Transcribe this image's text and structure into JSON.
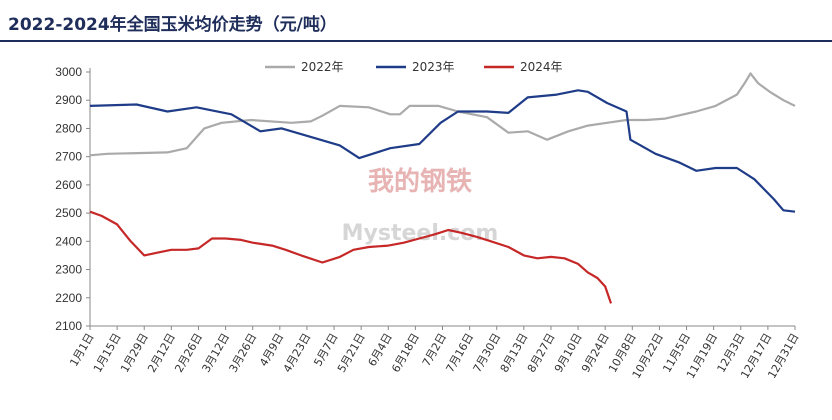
{
  "title": "2022-2024年全国玉米均价走势（元/吨）",
  "watermark": {
    "cn": "我的钢铁",
    "en": "Mysteel.com"
  },
  "chart_data": {
    "type": "line",
    "title": "2022-2024年全国玉米均价走势（元/吨）",
    "xlabel": "",
    "ylabel": "",
    "ylim": [
      2100,
      3000
    ],
    "yticks": [
      2100,
      2200,
      2300,
      2400,
      2500,
      2600,
      2700,
      2800,
      2900,
      3000
    ],
    "xticks": [
      "1月1日",
      "1月15日",
      "1月29日",
      "2月12日",
      "2月26日",
      "3月12日",
      "3月26日",
      "4月9日",
      "4月23日",
      "5月7日",
      "5月21日",
      "6月4日",
      "6月18日",
      "7月2日",
      "7月16日",
      "7月30日",
      "8月13日",
      "8月27日",
      "9月10日",
      "9月24日",
      "10月8日",
      "10月22日",
      "11月5日",
      "11月19日",
      "12月3日",
      "12月17日",
      "12月31日"
    ],
    "grid": false,
    "legend_position": "top",
    "series": [
      {
        "name": "2022年",
        "color": "#aaaaaa",
        "x": [
          "01-01",
          "01-10",
          "02-10",
          "02-20",
          "03-01",
          "03-10",
          "03-25",
          "04-15",
          "04-25",
          "05-01",
          "05-10",
          "05-25",
          "06-05",
          "06-10",
          "06-15",
          "06-30",
          "07-10",
          "07-25",
          "08-05",
          "08-15",
          "08-25",
          "09-05",
          "09-15",
          "09-25",
          "10-05",
          "10-15",
          "10-25",
          "11-10",
          "11-20",
          "12-01",
          "12-05",
          "12-08",
          "12-12",
          "12-18",
          "12-25",
          "12-31"
        ],
        "y": [
          2705,
          2710,
          2715,
          2730,
          2800,
          2820,
          2830,
          2820,
          2825,
          2845,
          2880,
          2875,
          2850,
          2850,
          2880,
          2880,
          2860,
          2840,
          2785,
          2790,
          2760,
          2790,
          2810,
          2820,
          2830,
          2830,
          2835,
          2860,
          2880,
          2920,
          2960,
          2995,
          2960,
          2930,
          2900,
          2880
        ]
      },
      {
        "name": "2023年",
        "color": "#1f3c88",
        "x": [
          "01-01",
          "01-25",
          "02-10",
          "02-25",
          "03-15",
          "03-30",
          "04-10",
          "04-25",
          "05-10",
          "05-20",
          "06-05",
          "06-20",
          "07-01",
          "07-10",
          "07-25",
          "08-05",
          "08-15",
          "08-30",
          "09-10",
          "09-15",
          "09-25",
          "10-05",
          "10-07",
          "10-20",
          "11-01",
          "11-10",
          "11-20",
          "12-01",
          "12-10",
          "12-20",
          "12-25",
          "12-31"
        ],
        "y": [
          2880,
          2885,
          2860,
          2875,
          2850,
          2790,
          2800,
          2770,
          2740,
          2695,
          2730,
          2745,
          2820,
          2860,
          2860,
          2855,
          2910,
          2920,
          2935,
          2930,
          2890,
          2860,
          2760,
          2710,
          2680,
          2650,
          2660,
          2660,
          2620,
          2550,
          2510,
          2505
        ]
      },
      {
        "name": "2024年",
        "color": "#c62828",
        "x": [
          "01-01",
          "01-07",
          "01-15",
          "01-22",
          "01-29",
          "02-05",
          "02-12",
          "02-20",
          "02-26",
          "03-05",
          "03-12",
          "03-20",
          "03-26",
          "04-05",
          "04-12",
          "04-20",
          "05-01",
          "05-10",
          "05-17",
          "05-25",
          "06-04",
          "06-12",
          "06-20",
          "06-28",
          "07-05",
          "07-12",
          "07-20",
          "07-27",
          "08-05",
          "08-13",
          "08-20",
          "08-27",
          "09-03",
          "09-10",
          "09-15",
          "09-20",
          "09-24",
          "09-27"
        ],
        "y": [
          2505,
          2490,
          2460,
          2400,
          2350,
          2360,
          2370,
          2370,
          2375,
          2410,
          2410,
          2405,
          2395,
          2385,
          2370,
          2350,
          2325,
          2345,
          2370,
          2380,
          2385,
          2395,
          2410,
          2425,
          2440,
          2430,
          2415,
          2400,
          2380,
          2350,
          2340,
          2345,
          2340,
          2320,
          2290,
          2270,
          2240,
          2180
        ]
      }
    ]
  }
}
